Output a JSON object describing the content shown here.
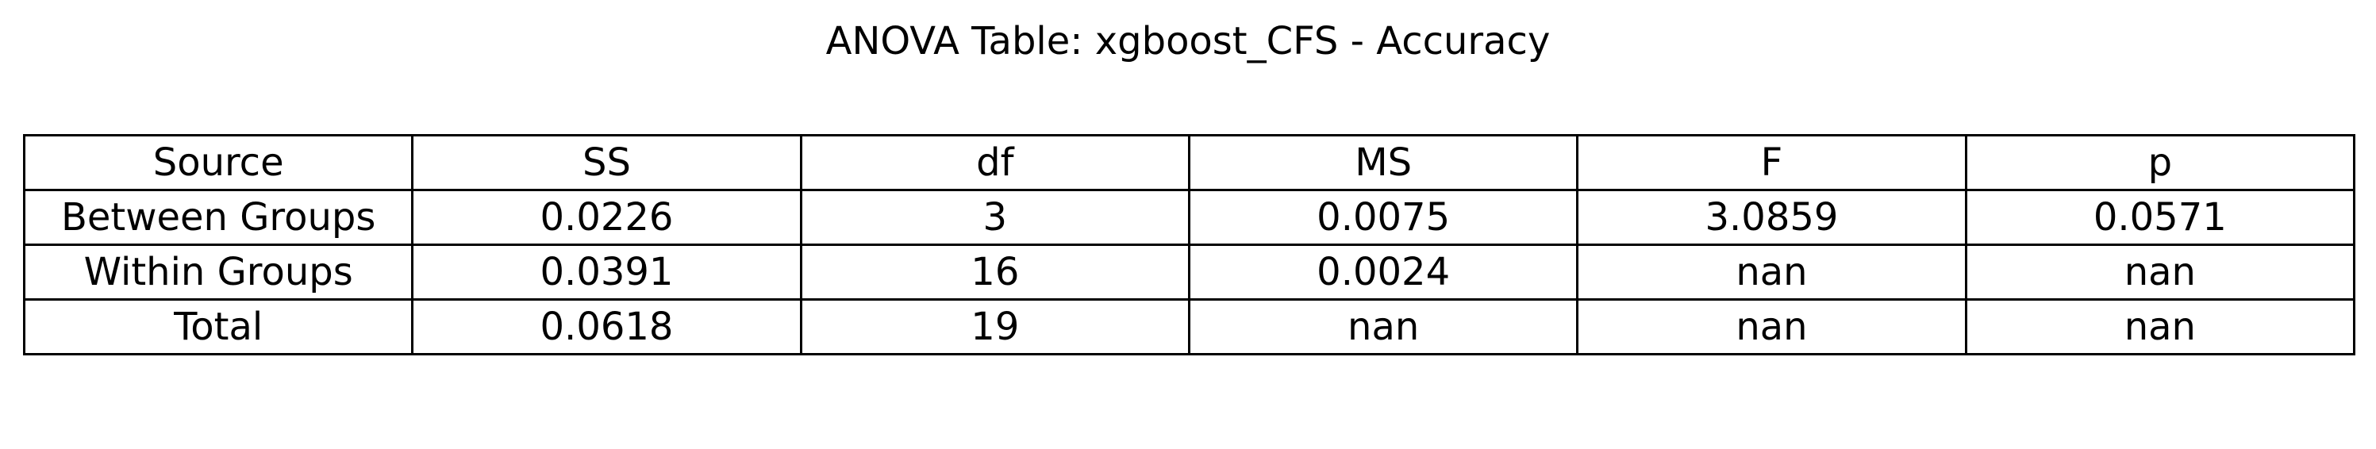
{
  "chart_data": {
    "type": "table",
    "title": "ANOVA Table: xgboost_CFS - Accuracy",
    "columns": [
      "Source",
      "SS",
      "df",
      "MS",
      "F",
      "p"
    ],
    "rows": [
      [
        "Between Groups",
        "0.0226",
        "3",
        "0.0075",
        "3.0859",
        "0.0571"
      ],
      [
        "Within Groups",
        "0.0391",
        "16",
        "0.0024",
        "nan",
        "nan"
      ],
      [
        "Total",
        "0.0618",
        "19",
        "nan",
        "nan",
        "nan"
      ]
    ]
  }
}
